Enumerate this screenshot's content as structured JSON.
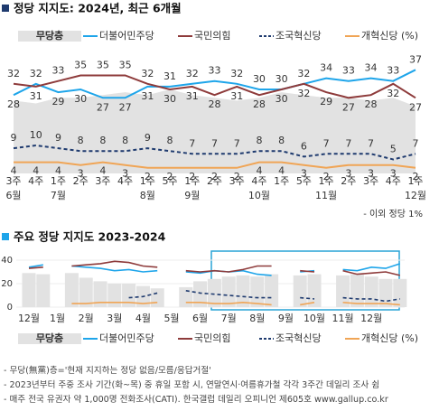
{
  "chart_data": [
    {
      "type": "line",
      "title": "정당 지지도: 2024년, 최근 6개월",
      "categories": [
        "3주",
        "4주",
        "1주",
        "2주",
        "3주",
        "4주",
        "1주",
        "5주",
        "1주",
        "2주",
        "3주",
        "4주",
        "1주",
        "5주",
        "1주",
        "2주",
        "3주",
        "4주",
        "1주"
      ],
      "category_groups": [
        "6월",
        null,
        "7월",
        null,
        null,
        null,
        "8월",
        null,
        "9월",
        null,
        null,
        "10월",
        null,
        null,
        "11월",
        null,
        null,
        null,
        "12월"
      ],
      "ylim": [
        0,
        40
      ],
      "series": [
        {
          "name": "무당층",
          "color": "#e2e2e2",
          "style": "area",
          "values": [
            26,
            25,
            27,
            27,
            28,
            29,
            28,
            30,
            28,
            27,
            26,
            27,
            29,
            28,
            27,
            27,
            26,
            27,
            24
          ]
        },
        {
          "name": "더불어민주당",
          "color": "#1ea5ea",
          "style": "solid",
          "values": [
            28,
            32,
            29,
            30,
            27,
            27,
            31,
            31,
            32,
            33,
            32,
            30,
            30,
            32,
            34,
            33,
            34,
            33,
            37
          ]
        },
        {
          "name": "국민의힘",
          "color": "#8e3b3b",
          "style": "solid",
          "values": [
            32,
            31,
            33,
            35,
            35,
            35,
            32,
            30,
            31,
            28,
            31,
            28,
            30,
            32,
            29,
            27,
            28,
            32,
            27
          ]
        },
        {
          "name": "조국혁신당",
          "color": "#1f3b6f",
          "style": "dashed",
          "values": [
            9,
            10,
            9,
            8,
            8,
            8,
            9,
            8,
            7,
            7,
            7,
            8,
            8,
            6,
            7,
            7,
            7,
            5,
            7
          ]
        },
        {
          "name": "개혁신당 (%)",
          "color": "#f0a556",
          "style": "solid",
          "values": [
            4,
            4,
            4,
            3,
            4,
            3,
            2,
            2,
            2,
            2,
            2,
            4,
            4,
            3,
            2,
            3,
            3,
            3,
            2
          ]
        }
      ],
      "annotation": "- 이외 정당 1%"
    },
    {
      "type": "line",
      "title": "주요 정당 지지도 2023-2024",
      "categories": [
        "12월",
        null,
        "1월",
        null,
        "2월",
        null,
        "3월",
        null,
        "4월",
        null,
        "5월",
        null,
        "6월",
        null,
        "7월",
        null,
        "8월",
        null,
        "9월",
        null,
        "10월",
        null,
        "11월",
        null,
        "12월",
        null,
        null
      ],
      "ylim": [
        0,
        40
      ],
      "yticks": [
        0,
        20,
        40
      ],
      "series": [
        {
          "name": "무당층",
          "color": "#e2e2e2",
          "style": "area",
          "values": [
            29,
            28,
            null,
            29,
            25,
            22,
            20,
            20,
            18,
            16,
            null,
            17,
            22,
            24,
            26,
            27,
            26,
            28,
            null,
            27,
            28,
            null,
            27,
            28,
            26,
            24,
            24
          ]
        },
        {
          "name": "더불어민주당",
          "color": "#1ea5ea",
          "style": "solid",
          "values": [
            34,
            36,
            null,
            35,
            34,
            33,
            31,
            32,
            30,
            31,
            null,
            30,
            29,
            31,
            30,
            31,
            28,
            27,
            null,
            30,
            31,
            null,
            32,
            31,
            34,
            33,
            37
          ]
        },
        {
          "name": "국민의힘",
          "color": "#8e3b3b",
          "style": "solid",
          "values": [
            33,
            34,
            null,
            35,
            36,
            37,
            39,
            38,
            35,
            34,
            null,
            31,
            30,
            31,
            30,
            32,
            35,
            35,
            null,
            31,
            30,
            null,
            31,
            28,
            29,
            30,
            27
          ]
        },
        {
          "name": "조국혁신당",
          "color": "#1f3b6f",
          "style": "dashed",
          "values": [
            null,
            null,
            null,
            null,
            null,
            null,
            null,
            8,
            9,
            12,
            null,
            14,
            12,
            11,
            10,
            9,
            8,
            8,
            null,
            8,
            7,
            null,
            8,
            7,
            7,
            5,
            7
          ]
        },
        {
          "name": "개혁신당 (%)",
          "color": "#f0a556",
          "style": "solid",
          "values": [
            null,
            null,
            null,
            3,
            3,
            4,
            4,
            4,
            3,
            4,
            null,
            4,
            4,
            3,
            3,
            4,
            3,
            2,
            null,
            2,
            4,
            null,
            4,
            3,
            3,
            3,
            2
          ]
        }
      ]
    }
  ],
  "footnotes": [
    "- 무당(無黨)층='현재 지지하는 정당 없음/모름/응답거절'",
    "- 2023년부터 주중 조사 기간(화~목) 중 휴일 포함 시, 연말연시·여름휴가철 각각 3주간 데일리 조사 쉼",
    "- 매주 전국 유권자 약 1,000명 전화조사(CATI). 한국갤럽 데일리 오피니언 제605호 www.gallup.co.kr"
  ]
}
